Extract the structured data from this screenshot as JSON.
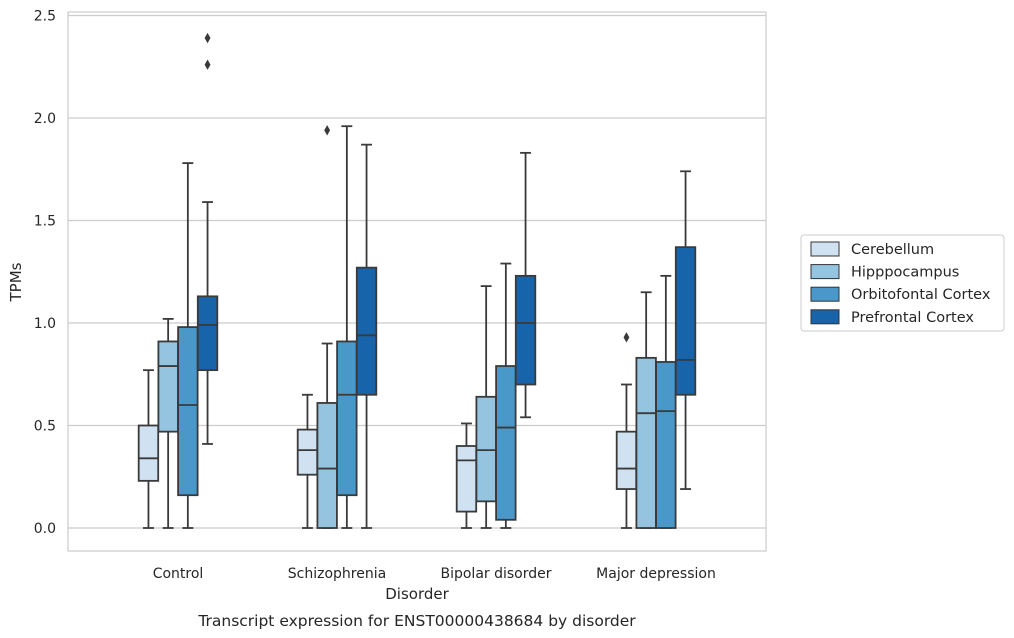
{
  "chart_data": {
    "type": "box",
    "xlabel": "Disorder",
    "ylabel": "TPMs",
    "caption": "Transcript expression for ENST00000438684 by disorder",
    "ylim": [
      -0.12,
      2.52
    ],
    "yticks": [
      "0.0",
      "0.5",
      "1.0",
      "1.5",
      "2.0",
      "2.5"
    ],
    "ytick_values": [
      0,
      0.5,
      1.0,
      1.5,
      2.0,
      2.5
    ],
    "grid": "horizontal",
    "legend_position": "right",
    "categories": [
      "Control",
      "Schizophrenia",
      "Bipolar disorder",
      "Major depression"
    ],
    "series": [
      {
        "name": "Cerebellum",
        "color": "#d0e1f2",
        "boxes": [
          {
            "whislo": 0.0,
            "q1": 0.23,
            "med": 0.34,
            "q3": 0.5,
            "whishi": 0.77,
            "fliers": []
          },
          {
            "whislo": 0.0,
            "q1": 0.26,
            "med": 0.38,
            "q3": 0.48,
            "whishi": 0.65,
            "fliers": []
          },
          {
            "whislo": 0.0,
            "q1": 0.08,
            "med": 0.33,
            "q3": 0.4,
            "whishi": 0.51,
            "fliers": []
          },
          {
            "whislo": 0.0,
            "q1": 0.19,
            "med": 0.29,
            "q3": 0.47,
            "whishi": 0.7,
            "fliers": [
              0.93
            ]
          }
        ]
      },
      {
        "name": "Hipppocampus",
        "color": "#94c4df",
        "boxes": [
          {
            "whislo": 0.0,
            "q1": 0.47,
            "med": 0.79,
            "q3": 0.91,
            "whishi": 1.02,
            "fliers": []
          },
          {
            "whislo": 0.0,
            "q1": 0.0,
            "med": 0.29,
            "q3": 0.61,
            "whishi": 0.9,
            "fliers": [
              1.94
            ]
          },
          {
            "whislo": 0.0,
            "q1": 0.13,
            "med": 0.38,
            "q3": 0.64,
            "whishi": 1.18,
            "fliers": []
          },
          {
            "whislo": 0.0,
            "q1": 0.0,
            "med": 0.56,
            "q3": 0.83,
            "whishi": 1.15,
            "fliers": []
          }
        ]
      },
      {
        "name": "Orbitofontal Cortex",
        "color": "#4a98c9",
        "boxes": [
          {
            "whislo": 0.0,
            "q1": 0.16,
            "med": 0.6,
            "q3": 0.98,
            "whishi": 1.78,
            "fliers": []
          },
          {
            "whislo": 0.0,
            "q1": 0.16,
            "med": 0.65,
            "q3": 0.91,
            "whishi": 1.96,
            "fliers": []
          },
          {
            "whislo": 0.0,
            "q1": 0.04,
            "med": 0.49,
            "q3": 0.79,
            "whishi": 1.29,
            "fliers": []
          },
          {
            "whislo": 0.0,
            "q1": 0.0,
            "med": 0.57,
            "q3": 0.81,
            "whishi": 1.23,
            "fliers": []
          }
        ]
      },
      {
        "name": "Prefrontal Cortex",
        "color": "#1764ab",
        "boxes": [
          {
            "whislo": 0.41,
            "q1": 0.77,
            "med": 0.99,
            "q3": 1.13,
            "whishi": 1.59,
            "fliers": [
              2.39,
              2.26
            ]
          },
          {
            "whislo": 0.0,
            "q1": 0.65,
            "med": 0.94,
            "q3": 1.27,
            "whishi": 1.87,
            "fliers": []
          },
          {
            "whislo": 0.54,
            "q1": 0.7,
            "med": 1.0,
            "q3": 1.23,
            "whishi": 1.83,
            "fliers": []
          },
          {
            "whislo": 0.19,
            "q1": 0.65,
            "med": 0.82,
            "q3": 1.37,
            "whishi": 1.74,
            "fliers": []
          }
        ]
      }
    ]
  }
}
